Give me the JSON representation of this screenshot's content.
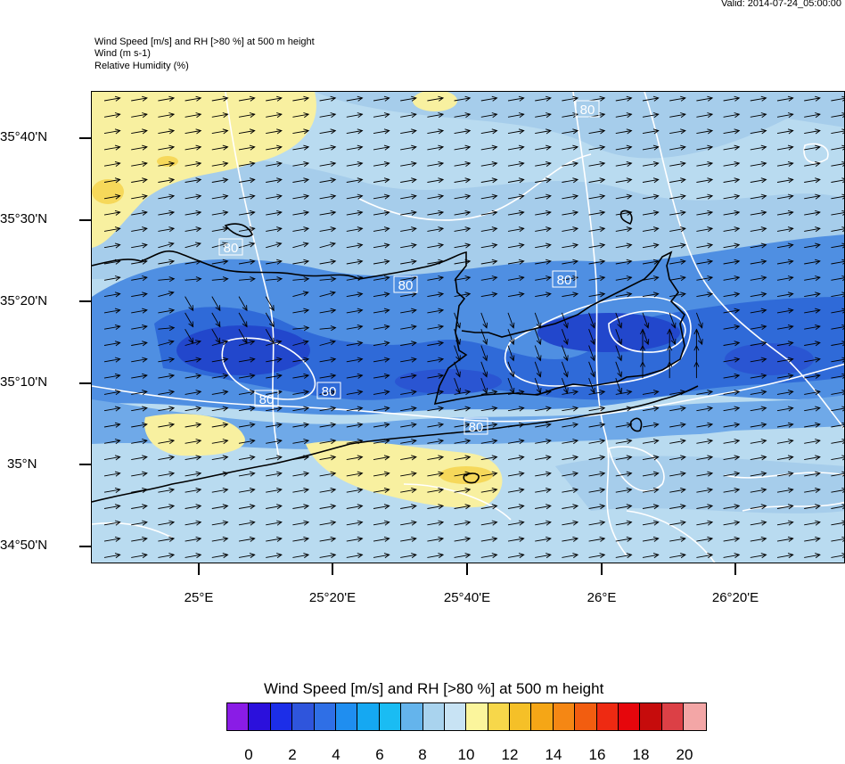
{
  "valid_text": "Valid: 2014-07-24_05:00:00",
  "header_lines": [
    "Wind Speed [m/s] and RH [>80 %] at 500 m height",
    "Wind   (m s-1)",
    "Relative Humidity   (%)"
  ],
  "lat_labels": [
    "35°40'N",
    "35°30'N",
    "35°20'N",
    "35°10'N",
    "35°N",
    "34°50'N"
  ],
  "lon_labels": [
    "25°E",
    "25°20'E",
    "25°40'E",
    "26°E",
    "26°20'E"
  ],
  "contour_label": "80",
  "colorbar": {
    "title": "Wind Speed [m/s] and RH [>80 %] at 500 m height",
    "colors": [
      "#8a1ce6",
      "#2b10dc",
      "#1c2ee8",
      "#2f55dc",
      "#2f6fe6",
      "#1f8ef0",
      "#15a8f2",
      "#1abcf3",
      "#64b4ec",
      "#a9d3ee",
      "#c8e3f4",
      "#fbf59c",
      "#f7d74a",
      "#f5c028",
      "#f5a616",
      "#f58714",
      "#f25d10",
      "#ee2a12",
      "#e6060c",
      "#c60c0c",
      "#dc4046",
      "#f3a6a6"
    ],
    "tick_labels": [
      "0",
      "2",
      "4",
      "6",
      "8",
      "10",
      "12",
      "14",
      "16",
      "18",
      "20"
    ]
  },
  "map_colors": {
    "background": "#b9dbf0",
    "light_blue": "#a6cdeb",
    "medium_blue": "#4f8fe2",
    "strong_blue": "#2f6ad8",
    "deep_blue": "#2247cc",
    "yellow": "#f8f0a0",
    "orange_yellow": "#f6d85a",
    "contour": "#ffffff",
    "coast": "#000000",
    "arrow": "#000000"
  }
}
